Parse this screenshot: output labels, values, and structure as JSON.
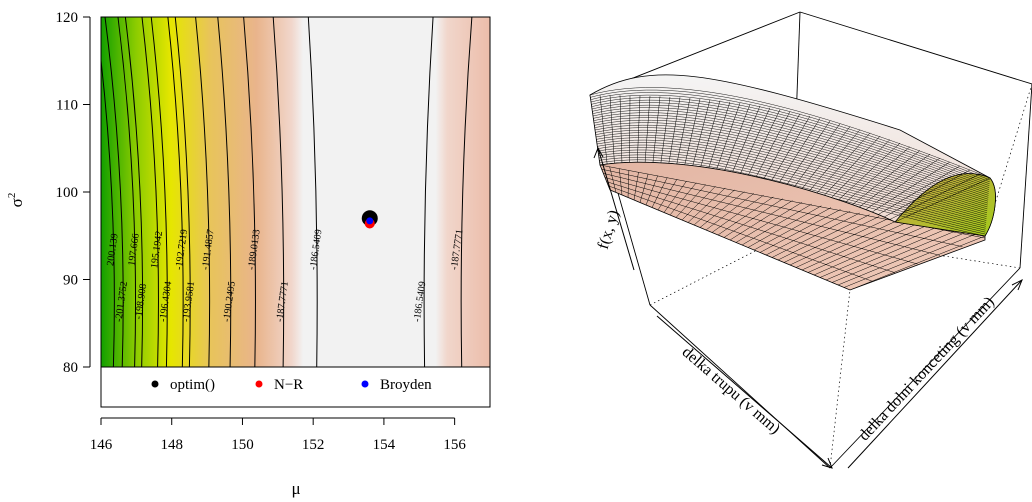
{
  "chart_data": [
    {
      "type": "contour",
      "xlabel": "μ",
      "ylabel": "σ",
      "ylabel_superscript": "2",
      "xlim": [
        146,
        157
      ],
      "ylim": [
        80,
        120
      ],
      "x_ticks": [
        146,
        148,
        150,
        152,
        154,
        156
      ],
      "y_ticks": [
        80,
        90,
        100,
        110,
        120
      ],
      "contour_levels": [
        {
          "label": "200.139",
          "x": 146.35
        },
        {
          "label": "-201.3752",
          "x": 146.6
        },
        {
          "label": "197.666",
          "x": 146.95
        },
        {
          "label": "-198.908",
          "x": 147.15
        },
        {
          "label": "195.1942",
          "x": 147.6
        },
        {
          "label": "-196.4304",
          "x": 147.85
        },
        {
          "label": "-192.7219",
          "x": 148.3
        },
        {
          "label": "-193.9581",
          "x": 148.5
        },
        {
          "label": "-191.4857",
          "x": 149.05
        },
        {
          "label": "-190.2495",
          "x": 149.65
        },
        {
          "label": "-189.0133",
          "x": 150.35
        },
        {
          "label": "-187.7771",
          "x": 151.15
        },
        {
          "label": "-186.5409",
          "x": 152.1
        },
        {
          "label": "-186.5409",
          "x": 155.15
        },
        {
          "label": "-187.7771",
          "x": 156.2
        }
      ],
      "points": [
        {
          "name": "optim()",
          "x": 153.6,
          "y": 97.0,
          "color": "#000000"
        },
        {
          "name": "N-R",
          "x": 153.6,
          "y": 96.4,
          "color": "#ff0000"
        },
        {
          "name": "Broyden",
          "x": 153.6,
          "y": 96.7,
          "color": "#0000ff"
        }
      ],
      "legend": {
        "placement": "bottom",
        "items": [
          {
            "label": "optim()",
            "color": "#000000"
          },
          {
            "label": "N−R",
            "color": "#ff0000"
          },
          {
            "label": "Broyden",
            "color": "#0000ff"
          }
        ]
      },
      "colors": {
        "low": "#129f00",
        "mid": "#e8e600",
        "high": "#e9b48c",
        "peak": "#f2f2f2"
      }
    },
    {
      "type": "surface",
      "zlabel": "f(x, y)",
      "xlabel": "delka trupu (v mm)",
      "ylabel": "delka dolni konceting (v mm)",
      "colors": {
        "top": "#f2f2f2",
        "side": "#e9b48c",
        "low": "#66c300"
      }
    }
  ]
}
